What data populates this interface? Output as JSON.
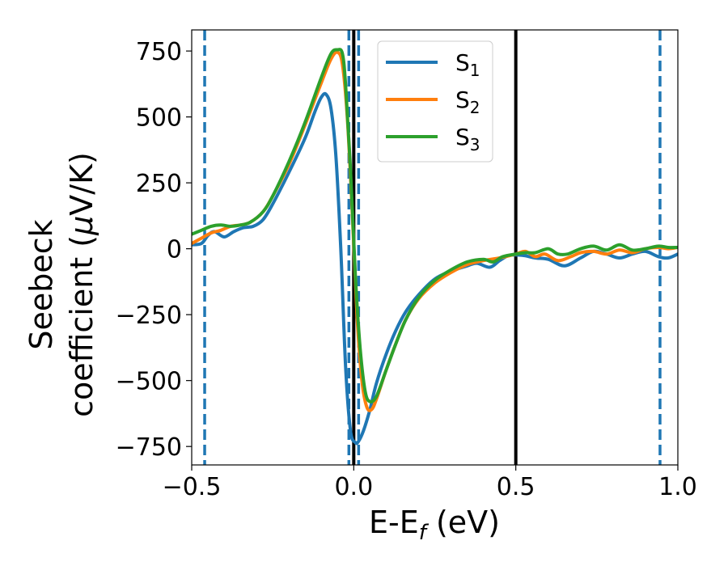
{
  "chart_data": {
    "type": "line",
    "xlabel": {
      "main": "E-E",
      "sub": "f",
      "rest": " (eV)"
    },
    "ylabel": {
      "line1": "Seebeck",
      "line2_pre": "coefficient  (",
      "mu": "μ",
      "line2_post": "V/K)"
    },
    "xlim": [
      -0.5,
      1.0
    ],
    "ylim": [
      -820,
      830
    ],
    "xticks": [
      -0.5,
      0.0,
      0.5,
      1.0
    ],
    "xtick_labels": [
      "−0.5",
      "0.0",
      "0.5",
      "1.0"
    ],
    "yticks": [
      750,
      500,
      250,
      0,
      -250,
      -500,
      -750
    ],
    "ytick_labels": [
      "750",
      "500",
      "250",
      "0",
      "−250",
      "−500",
      "−750"
    ],
    "legend_placement": "upper-center",
    "grid": false,
    "vlines": [
      {
        "x": -0.46,
        "style": "dashed",
        "color": "#1f77b4"
      },
      {
        "x": -0.015,
        "style": "dashed",
        "color": "#1f77b4"
      },
      {
        "x": 0.015,
        "style": "dashed",
        "color": "#1f77b4"
      },
      {
        "x": 0.945,
        "style": "dashed",
        "color": "#1f77b4"
      },
      {
        "x": 0.0,
        "style": "solid",
        "color": "#000000"
      },
      {
        "x": 0.5,
        "style": "solid",
        "color": "#000000"
      }
    ],
    "series": [
      {
        "name": "S",
        "sub": "1",
        "color": "#1f77b4",
        "points": [
          [
            -0.5,
            15
          ],
          [
            -0.47,
            20
          ],
          [
            -0.45,
            50
          ],
          [
            -0.43,
            65
          ],
          [
            -0.4,
            45
          ],
          [
            -0.37,
            65
          ],
          [
            -0.34,
            80
          ],
          [
            -0.31,
            85
          ],
          [
            -0.28,
            110
          ],
          [
            -0.25,
            170
          ],
          [
            -0.2,
            290
          ],
          [
            -0.15,
            420
          ],
          [
            -0.12,
            520
          ],
          [
            -0.1,
            575
          ],
          [
            -0.085,
            585
          ],
          [
            -0.07,
            530
          ],
          [
            -0.055,
            350
          ],
          [
            -0.04,
            0
          ],
          [
            -0.025,
            -450
          ],
          [
            -0.01,
            -690
          ],
          [
            0.005,
            -735
          ],
          [
            0.015,
            -730
          ],
          [
            0.03,
            -690
          ],
          [
            0.05,
            -610
          ],
          [
            0.07,
            -510
          ],
          [
            0.1,
            -400
          ],
          [
            0.13,
            -310
          ],
          [
            0.16,
            -240
          ],
          [
            0.2,
            -175
          ],
          [
            0.25,
            -115
          ],
          [
            0.3,
            -85
          ],
          [
            0.35,
            -65
          ],
          [
            0.38,
            -55
          ],
          [
            0.42,
            -70
          ],
          [
            0.45,
            -45
          ],
          [
            0.48,
            -25
          ],
          [
            0.52,
            -25
          ],
          [
            0.56,
            -35
          ],
          [
            0.6,
            -40
          ],
          [
            0.65,
            -65
          ],
          [
            0.7,
            -35
          ],
          [
            0.74,
            -10
          ],
          [
            0.78,
            -20
          ],
          [
            0.82,
            -35
          ],
          [
            0.86,
            -20
          ],
          [
            0.9,
            -10
          ],
          [
            0.94,
            -30
          ],
          [
            0.97,
            -35
          ],
          [
            1.0,
            -20
          ]
        ]
      },
      {
        "name": "S",
        "sub": "2",
        "color": "#ff7f0e",
        "points": [
          [
            -0.5,
            20
          ],
          [
            -0.47,
            40
          ],
          [
            -0.44,
            60
          ],
          [
            -0.41,
            70
          ],
          [
            -0.38,
            85
          ],
          [
            -0.35,
            90
          ],
          [
            -0.32,
            100
          ],
          [
            -0.28,
            140
          ],
          [
            -0.25,
            200
          ],
          [
            -0.2,
            320
          ],
          [
            -0.15,
            470
          ],
          [
            -0.1,
            630
          ],
          [
            -0.07,
            720
          ],
          [
            -0.05,
            745
          ],
          [
            -0.035,
            700
          ],
          [
            -0.02,
            500
          ],
          [
            -0.005,
            150
          ],
          [
            0.01,
            -250
          ],
          [
            0.025,
            -500
          ],
          [
            0.04,
            -600
          ],
          [
            0.055,
            -610
          ],
          [
            0.07,
            -570
          ],
          [
            0.1,
            -460
          ],
          [
            0.13,
            -360
          ],
          [
            0.16,
            -270
          ],
          [
            0.2,
            -190
          ],
          [
            0.25,
            -130
          ],
          [
            0.3,
            -90
          ],
          [
            0.35,
            -60
          ],
          [
            0.4,
            -45
          ],
          [
            0.45,
            -35
          ],
          [
            0.5,
            -20
          ],
          [
            0.53,
            -10
          ],
          [
            0.56,
            -30
          ],
          [
            0.59,
            -20
          ],
          [
            0.63,
            -45
          ],
          [
            0.67,
            -30
          ],
          [
            0.7,
            -15
          ],
          [
            0.74,
            -10
          ],
          [
            0.78,
            -20
          ],
          [
            0.82,
            -5
          ],
          [
            0.86,
            -15
          ],
          [
            0.9,
            0
          ],
          [
            0.94,
            5
          ],
          [
            0.97,
            0
          ],
          [
            1.0,
            5
          ]
        ]
      },
      {
        "name": "S",
        "sub": "3",
        "color": "#2ca02c",
        "points": [
          [
            -0.5,
            55
          ],
          [
            -0.47,
            70
          ],
          [
            -0.44,
            85
          ],
          [
            -0.41,
            90
          ],
          [
            -0.38,
            85
          ],
          [
            -0.35,
            90
          ],
          [
            -0.32,
            100
          ],
          [
            -0.28,
            140
          ],
          [
            -0.25,
            200
          ],
          [
            -0.2,
            330
          ],
          [
            -0.15,
            480
          ],
          [
            -0.1,
            650
          ],
          [
            -0.07,
            740
          ],
          [
            -0.05,
            755
          ],
          [
            -0.035,
            740
          ],
          [
            -0.025,
            620
          ],
          [
            -0.01,
            300
          ],
          [
            0.005,
            -100
          ],
          [
            0.02,
            -380
          ],
          [
            0.035,
            -540
          ],
          [
            0.05,
            -580
          ],
          [
            0.07,
            -560
          ],
          [
            0.1,
            -460
          ],
          [
            0.13,
            -360
          ],
          [
            0.16,
            -270
          ],
          [
            0.2,
            -185
          ],
          [
            0.25,
            -120
          ],
          [
            0.3,
            -80
          ],
          [
            0.35,
            -50
          ],
          [
            0.4,
            -40
          ],
          [
            0.43,
            -50
          ],
          [
            0.46,
            -30
          ],
          [
            0.5,
            -20
          ],
          [
            0.53,
            -15
          ],
          [
            0.56,
            -15
          ],
          [
            0.6,
            0
          ],
          [
            0.63,
            -20
          ],
          [
            0.66,
            -20
          ],
          [
            0.7,
            0
          ],
          [
            0.74,
            10
          ],
          [
            0.78,
            -5
          ],
          [
            0.82,
            15
          ],
          [
            0.86,
            -5
          ],
          [
            0.9,
            0
          ],
          [
            0.94,
            10
          ],
          [
            0.97,
            5
          ],
          [
            1.0,
            5
          ]
        ]
      }
    ]
  }
}
